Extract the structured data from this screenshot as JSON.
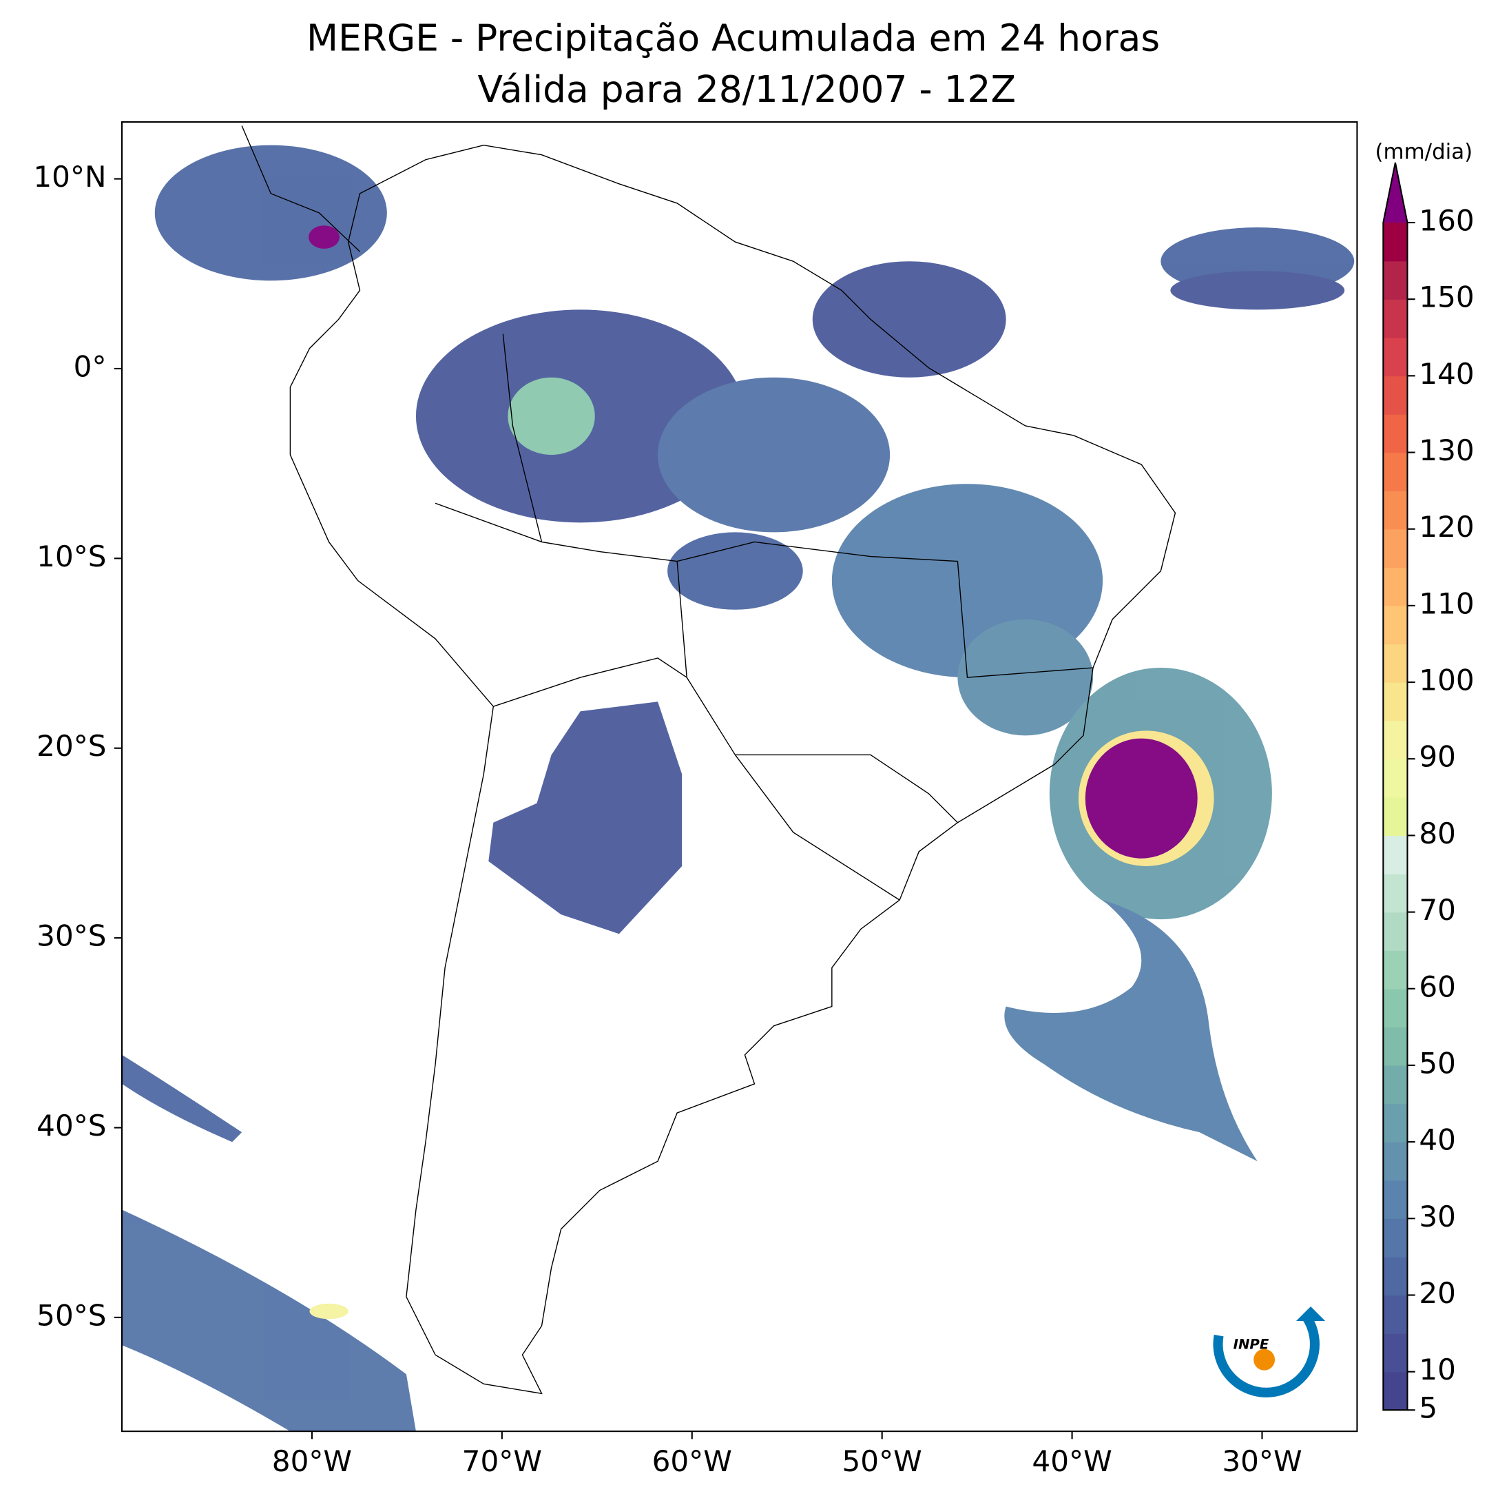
{
  "chart_data": {
    "type": "map",
    "title": "MERGE - Precipitação Acumulada em 24 horas",
    "subtitle": "Válida para 28/11/2007 - 12Z",
    "xlim": [
      -90,
      -25
    ],
    "ylim": [
      -56,
      13
    ],
    "xticks": [
      {
        "value": -80,
        "label": "80°W"
      },
      {
        "value": -70,
        "label": "70°W"
      },
      {
        "value": -60,
        "label": "60°W"
      },
      {
        "value": -50,
        "label": "50°W"
      },
      {
        "value": -40,
        "label": "40°W"
      },
      {
        "value": -30,
        "label": "30°W"
      }
    ],
    "yticks": [
      {
        "value": 10,
        "label": "10°N"
      },
      {
        "value": 0,
        "label": "0°"
      },
      {
        "value": -10,
        "label": "10°S"
      },
      {
        "value": -20,
        "label": "20°S"
      },
      {
        "value": -30,
        "label": "30°S"
      },
      {
        "value": -40,
        "label": "40°S"
      },
      {
        "value": -50,
        "label": "50°S"
      }
    ],
    "colorbar": {
      "label": "(mm/dia)",
      "lim": [
        5,
        160
      ],
      "ticks": [
        5,
        10,
        20,
        30,
        40,
        50,
        60,
        70,
        80,
        90,
        100,
        110,
        120,
        130,
        140,
        150,
        160
      ],
      "colors": [
        "#45448e",
        "#484f94",
        "#4b5b9b",
        "#4f69a3",
        "#5576a9",
        "#5a83ad",
        "#6391ae",
        "#6a9fad",
        "#73adab",
        "#7fbcaa",
        "#8ac8ad",
        "#9bd1b5",
        "#b0dac4",
        "#c4e4d2",
        "#d8ede4",
        "#e6f598",
        "#eff7a0",
        "#f5f3a0",
        "#f8e58e",
        "#fbd57f",
        "#fdc574",
        "#fdb469",
        "#fca260",
        "#f98e52",
        "#f67a49",
        "#ef6545",
        "#e55247",
        "#d9424c",
        "#c8344c",
        "#b3244a",
        "#9e0142"
      ],
      "extend_color": "#800080"
    },
    "logo_text": "INPE"
  }
}
